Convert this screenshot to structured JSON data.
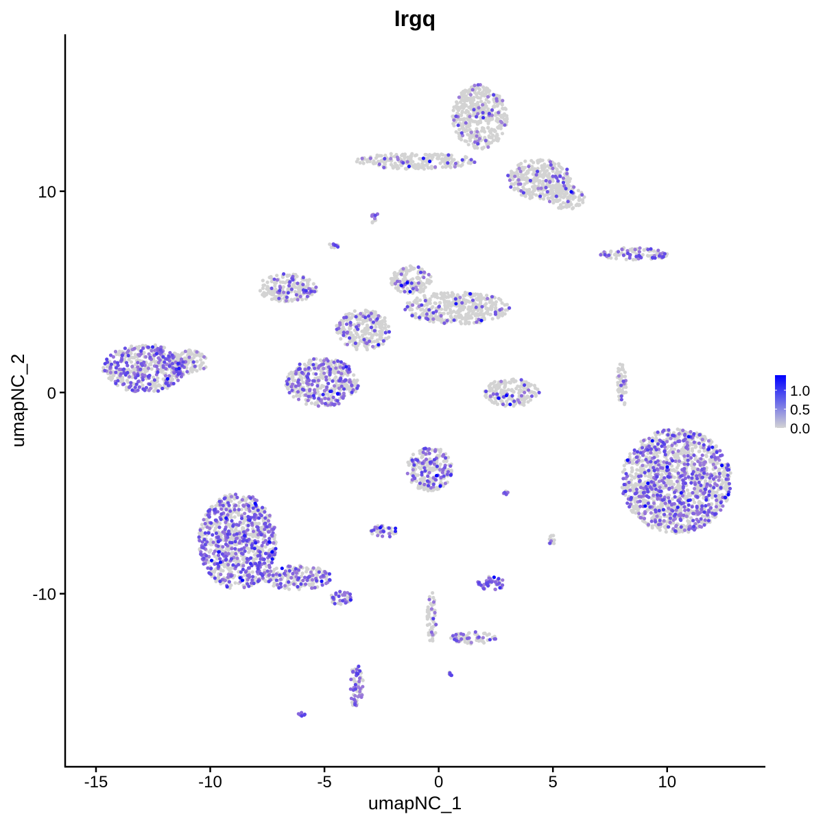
{
  "chart_data": {
    "type": "scatter",
    "title": "Irgq",
    "xlabel": "umapNC_1",
    "ylabel": "umapNC_2",
    "xlim": [
      -16.35,
      14.3
    ],
    "ylim": [
      -18.6,
      17.8
    ],
    "x_ticks": [
      -15,
      -10,
      -5,
      0,
      5,
      10
    ],
    "x_tick_labels": [
      "-15",
      "-10",
      "-5",
      "0",
      "5",
      "10"
    ],
    "y_ticks": [
      -10,
      0,
      10
    ],
    "y_tick_labels": [
      "-10",
      "0",
      "10"
    ],
    "grid": false,
    "legend": {
      "placement": "right",
      "type": "colorbar",
      "range": [
        0,
        1.4
      ],
      "ticks": [
        0,
        0.5,
        1.0
      ],
      "tick_labels": [
        "0.0",
        "0.5",
        "1.0"
      ],
      "low_color": "#d3d3d3",
      "high_color": "#0000ff"
    },
    "clusters": [
      {
        "cx": -12.9,
        "cy": 1.2,
        "rx": 1.8,
        "ry": 1.2,
        "expr_fraction": 0.35
      },
      {
        "cx": -11.0,
        "cy": 1.5,
        "rx": 0.9,
        "ry": 0.6,
        "expr_fraction": 0.15
      },
      {
        "cx": -8.8,
        "cy": -7.4,
        "rx": 1.7,
        "ry": 2.4,
        "expr_fraction": 0.4
      },
      {
        "cx": -6.2,
        "cy": -9.2,
        "rx": 1.5,
        "ry": 0.6,
        "expr_fraction": 0.3
      },
      {
        "cx": -4.3,
        "cy": -10.2,
        "rx": 0.5,
        "ry": 0.35,
        "expr_fraction": 0.6
      },
      {
        "cx": -3.6,
        "cy": -14.6,
        "rx": 0.3,
        "ry": 1.1,
        "expr_fraction": 0.4
      },
      {
        "cx": -5.1,
        "cy": 0.5,
        "rx": 1.6,
        "ry": 1.2,
        "expr_fraction": 0.35
      },
      {
        "cx": -6.6,
        "cy": 5.2,
        "rx": 1.3,
        "ry": 0.7,
        "expr_fraction": 0.15
      },
      {
        "cx": -3.3,
        "cy": 3.1,
        "rx": 1.2,
        "ry": 1.0,
        "expr_fraction": 0.15
      },
      {
        "cx": -1.2,
        "cy": 5.6,
        "rx": 0.9,
        "ry": 0.7,
        "expr_fraction": 0.15
      },
      {
        "cx": 0.8,
        "cy": 4.2,
        "rx": 2.3,
        "ry": 0.8,
        "expr_fraction": 0.12
      },
      {
        "cx": 1.8,
        "cy": 13.7,
        "rx": 1.2,
        "ry": 1.6,
        "expr_fraction": 0.08
      },
      {
        "cx": -1.0,
        "cy": 11.5,
        "rx": 2.6,
        "ry": 0.4,
        "expr_fraction": 0.1
      },
      {
        "cx": 4.4,
        "cy": 10.6,
        "rx": 1.4,
        "ry": 1.0,
        "expr_fraction": 0.12
      },
      {
        "cx": 5.6,
        "cy": 9.7,
        "rx": 0.8,
        "ry": 0.6,
        "expr_fraction": 0.1
      },
      {
        "cx": 10.4,
        "cy": -4.4,
        "rx": 2.4,
        "ry": 2.6,
        "expr_fraction": 0.33
      },
      {
        "cx": 8.6,
        "cy": 6.9,
        "rx": 1.6,
        "ry": 0.3,
        "expr_fraction": 0.3
      },
      {
        "cx": 3.2,
        "cy": 0.0,
        "rx": 1.2,
        "ry": 0.7,
        "expr_fraction": 0.1
      },
      {
        "cx": -0.4,
        "cy": -3.8,
        "rx": 1.0,
        "ry": 1.1,
        "expr_fraction": 0.3
      },
      {
        "cx": -2.4,
        "cy": -6.9,
        "rx": 0.6,
        "ry": 0.3,
        "expr_fraction": 0.3
      },
      {
        "cx": 2.3,
        "cy": -9.5,
        "rx": 0.6,
        "ry": 0.35,
        "expr_fraction": 0.7
      },
      {
        "cx": -0.3,
        "cy": -11.2,
        "rx": 0.2,
        "ry": 1.3,
        "expr_fraction": 0.2
      },
      {
        "cx": 1.5,
        "cy": -12.2,
        "rx": 1.0,
        "ry": 0.3,
        "expr_fraction": 0.2
      },
      {
        "cx": 8.0,
        "cy": 0.3,
        "rx": 0.2,
        "ry": 1.2,
        "expr_fraction": 0.2
      },
      {
        "cx": 5.0,
        "cy": -7.3,
        "rx": 0.2,
        "ry": 0.3,
        "expr_fraction": 0.5
      },
      {
        "cx": 2.9,
        "cy": -5.0,
        "rx": 0.3,
        "ry": 0.1,
        "expr_fraction": 0.4
      },
      {
        "cx": -6.0,
        "cy": -16.0,
        "rx": 0.15,
        "ry": 0.1,
        "expr_fraction": 0.9
      },
      {
        "cx": -2.8,
        "cy": 8.7,
        "rx": 0.2,
        "ry": 0.3,
        "expr_fraction": 0.4
      },
      {
        "cx": -4.6,
        "cy": 7.3,
        "rx": 0.2,
        "ry": 0.2,
        "expr_fraction": 0.6
      },
      {
        "cx": 0.5,
        "cy": -14.0,
        "rx": 0.1,
        "ry": 0.1,
        "expr_fraction": 0.5
      }
    ]
  }
}
